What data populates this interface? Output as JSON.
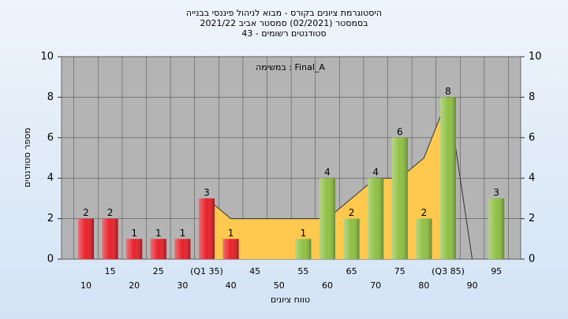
{
  "chart_data": {
    "type": "bar",
    "title": [
      "היסטוגרמת ציונים בקורס - מבוא לניהול פיננסי בבנייה",
      "בסמסטר (02/2021)  סמסטר אביב 2021/22",
      "סטודנטים רשומים - 43"
    ],
    "annotation": "במשימה : Final_A",
    "x_label": "טווח ציונים",
    "y_label": "מספר סטודנטים",
    "categories": [
      "10",
      "15",
      "20",
      "25",
      "30",
      "(Q1 35)",
      "40",
      "45",
      "50",
      "55",
      "60",
      "65",
      "70",
      "75",
      "80",
      "(Q3 85)",
      "90",
      "95"
    ],
    "values": [
      2,
      2,
      1,
      1,
      1,
      3,
      1,
      0,
      0,
      1,
      4,
      2,
      4,
      6,
      2,
      8,
      0,
      3
    ],
    "colors": [
      "#e8202a",
      "#e8202a",
      "#e8202a",
      "#e8202a",
      "#e8202a",
      "#e8202a",
      "#e8202a",
      "#e8202a",
      "#e8202a",
      "#8fc043",
      "#8fc043",
      "#8fc043",
      "#8fc043",
      "#8fc043",
      "#8fc043",
      "#8fc043",
      "#8fc043",
      "#8fc043"
    ],
    "area": {
      "color": "#ffc84f",
      "values": [
        null,
        null,
        null,
        null,
        null,
        3,
        2,
        2,
        2,
        2,
        2,
        3,
        4,
        4,
        5,
        8,
        0,
        null
      ]
    },
    "ylim": [
      0,
      10
    ],
    "yticks": [
      0,
      2,
      4,
      6,
      8,
      10
    ],
    "y2lim": [
      0,
      10
    ],
    "y2ticks": [
      0,
      2,
      4,
      6,
      8,
      10
    ],
    "grid": true
  }
}
